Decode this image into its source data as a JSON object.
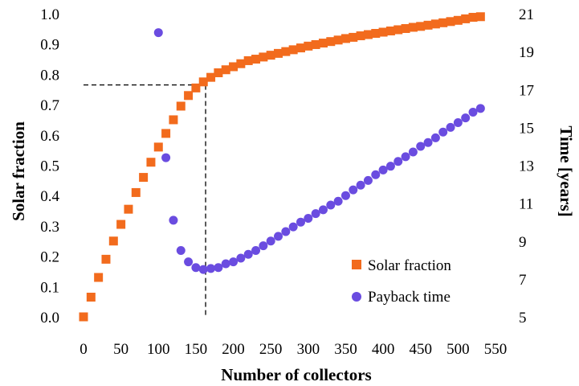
{
  "chart_data": {
    "type": "scatter",
    "xlabel": "Number of collectors",
    "ylabel_left": "Solar fraction",
    "ylabel_right": "Time [years]",
    "xlim": [
      0,
      550
    ],
    "ylim_left": [
      0,
      1.0
    ],
    "ylim_right": [
      5,
      21
    ],
    "x_ticks": [
      "0",
      "50",
      "100",
      "150",
      "200",
      "250",
      "300",
      "350",
      "400",
      "450",
      "500",
      "550"
    ],
    "y_left_ticks": [
      "0.0",
      "0.1",
      "0.2",
      "0.3",
      "0.4",
      "0.5",
      "0.6",
      "0.7",
      "0.8",
      "0.9",
      "1.0"
    ],
    "y_right_ticks": [
      "5",
      "7",
      "9",
      "11",
      "13",
      "15",
      "17",
      "19",
      "21"
    ],
    "legend_position": "bottom-right",
    "colors": {
      "solar": "#f26b1d",
      "payback": "#6a4ce0"
    },
    "reference_point": {
      "x": 163,
      "y": 0.765
    },
    "series": [
      {
        "name": "Solar fraction",
        "axis": "left",
        "marker": "square",
        "x": [
          0,
          10,
          20,
          30,
          40,
          50,
          60,
          70,
          80,
          90,
          100,
          110,
          120,
          130,
          140,
          150,
          160,
          170,
          180,
          190,
          200,
          210,
          220,
          230,
          240,
          250,
          260,
          270,
          280,
          290,
          300,
          310,
          320,
          330,
          340,
          350,
          360,
          370,
          380,
          390,
          400,
          410,
          420,
          430,
          440,
          450,
          460,
          470,
          480,
          490,
          500,
          510,
          520,
          530
        ],
        "y": [
          0.0,
          0.065,
          0.13,
          0.19,
          0.25,
          0.305,
          0.355,
          0.41,
          0.46,
          0.51,
          0.56,
          0.605,
          0.65,
          0.695,
          0.73,
          0.755,
          0.775,
          0.79,
          0.805,
          0.815,
          0.825,
          0.835,
          0.845,
          0.85,
          0.857,
          0.863,
          0.869,
          0.875,
          0.881,
          0.887,
          0.893,
          0.898,
          0.903,
          0.908,
          0.913,
          0.918,
          0.922,
          0.927,
          0.931,
          0.935,
          0.939,
          0.943,
          0.947,
          0.951,
          0.955,
          0.958,
          0.962,
          0.966,
          0.97,
          0.974,
          0.978,
          0.983,
          0.988,
          0.99
        ]
      },
      {
        "name": "Payback time",
        "axis": "right",
        "marker": "circle",
        "x": [
          100,
          110,
          120,
          130,
          140,
          150,
          160,
          170,
          180,
          190,
          200,
          210,
          220,
          230,
          240,
          250,
          260,
          270,
          280,
          290,
          300,
          310,
          320,
          330,
          340,
          350,
          360,
          370,
          380,
          390,
          400,
          410,
          420,
          430,
          440,
          450,
          460,
          470,
          480,
          490,
          500,
          510,
          520,
          530
        ],
        "y": [
          20.0,
          13.4,
          10.1,
          8.5,
          7.9,
          7.6,
          7.5,
          7.55,
          7.6,
          7.8,
          7.9,
          8.1,
          8.3,
          8.5,
          8.75,
          9.0,
          9.25,
          9.5,
          9.75,
          10.0,
          10.2,
          10.45,
          10.65,
          10.9,
          11.1,
          11.4,
          11.7,
          11.95,
          12.2,
          12.5,
          12.75,
          12.95,
          13.2,
          13.45,
          13.7,
          14.0,
          14.2,
          14.45,
          14.75,
          15.0,
          15.25,
          15.5,
          15.8,
          16.0
        ]
      }
    ]
  }
}
